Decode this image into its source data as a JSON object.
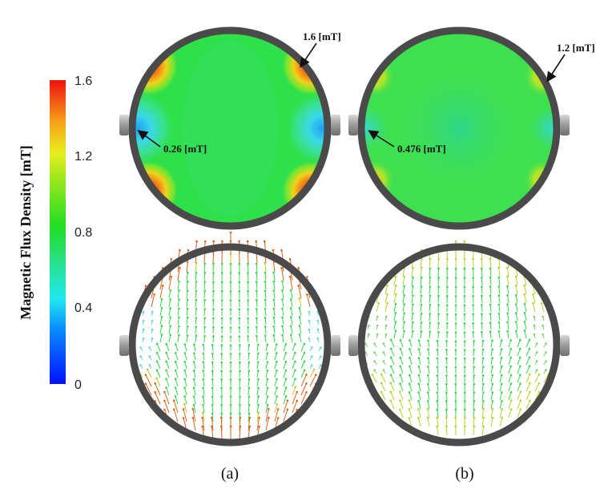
{
  "colorbar": {
    "title": "Magnetic Flux Density [mT]",
    "ticks": [
      "1.6",
      "1.2",
      "0.8",
      "0.4",
      "0"
    ],
    "tick_values": [
      1.6,
      1.2,
      0.8,
      0.4,
      0
    ]
  },
  "panel_a": {
    "caption": "(a)",
    "max_label": "1.6 [mT]",
    "min_label": "0.26 [mT]",
    "max_value": 1.6,
    "min_value": 0.26
  },
  "panel_b": {
    "caption": "(b)",
    "max_label": "1.2 [mT]",
    "min_label": "0.476 [mT]",
    "max_value": 1.2,
    "min_value": 0.476
  },
  "colors": {
    "ring": "#555555",
    "field_green": "#2ee04a",
    "field_cyan": "#3ed0e6",
    "hot_red": "#e8201a",
    "warm_yellow": "#f0c020"
  }
}
